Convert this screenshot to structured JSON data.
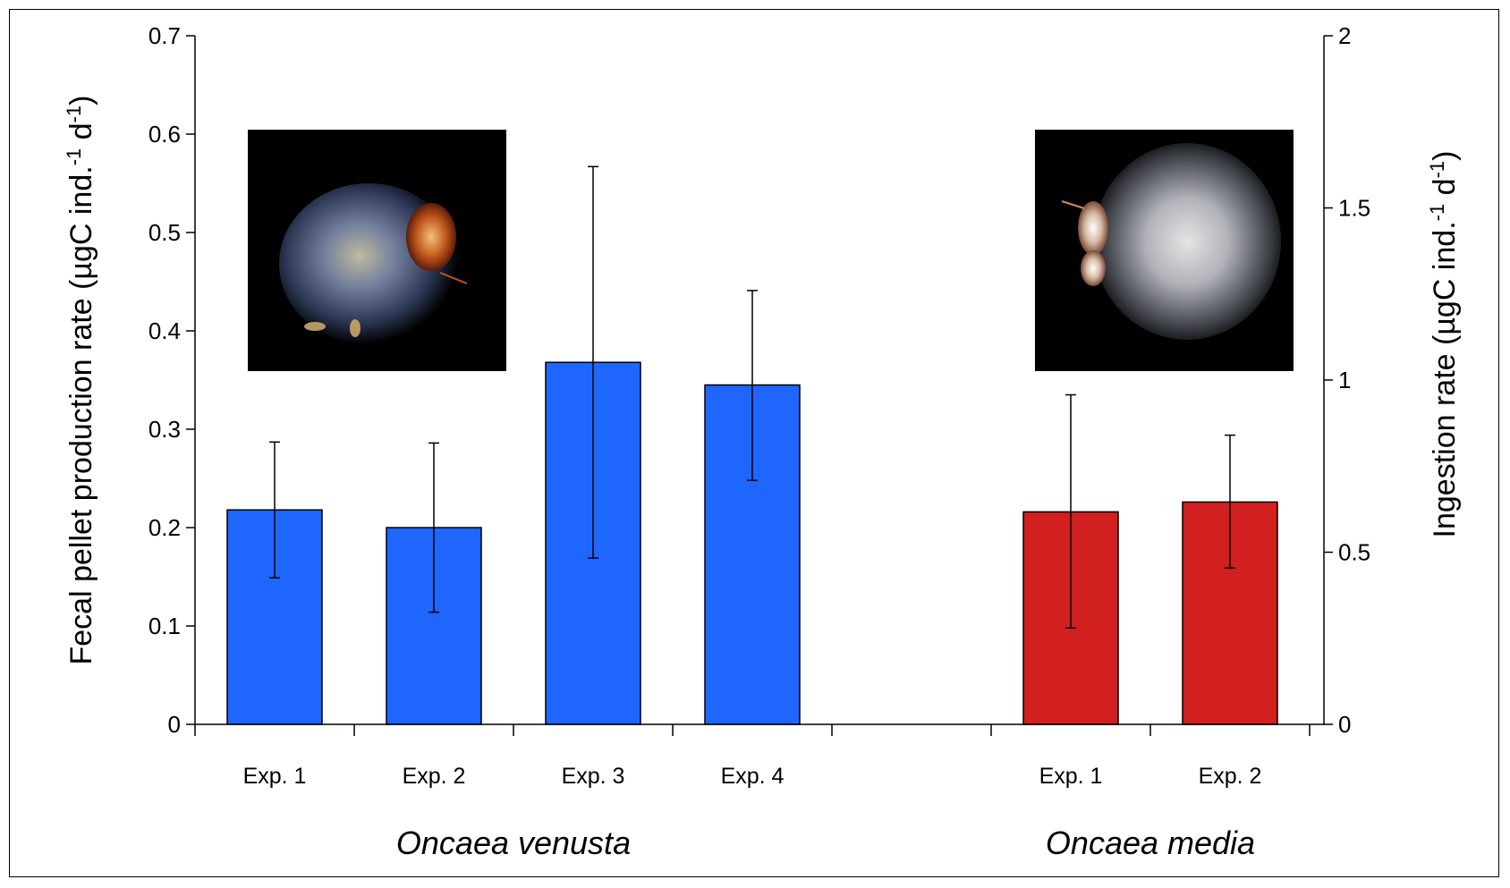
{
  "chart_data": {
    "type": "bar",
    "groups": [
      {
        "name": "Oncaea venusta",
        "color": "#1f66ff",
        "bars": [
          {
            "label": "Exp. 1",
            "value": 0.218,
            "err_low": 0.149,
            "err_high": 0.287
          },
          {
            "label": "Exp. 2",
            "value": 0.2,
            "err_low": 0.114,
            "err_high": 0.286
          },
          {
            "label": "Exp. 3",
            "value": 0.368,
            "err_low": 0.169,
            "err_high": 0.567
          },
          {
            "label": "Exp. 4",
            "value": 0.345,
            "err_low": 0.248,
            "err_high": 0.441
          }
        ]
      },
      {
        "name": "Oncaea media",
        "color": "#d21f1f",
        "bars": [
          {
            "label": "Exp. 1",
            "value": 0.216,
            "err_low": 0.098,
            "err_high": 0.335
          },
          {
            "label": "Exp. 2",
            "value": 0.226,
            "err_low": 0.159,
            "err_high": 0.294
          }
        ]
      }
    ],
    "ylabel_left_parts": [
      "Fecal pellet production rate (µgC ind.",
      "-1",
      " d",
      "-1",
      ")"
    ],
    "ylabel_right_parts": [
      "Ingestion rate (µgC ind.",
      "-1",
      " d",
      "-1",
      ")"
    ],
    "ylim_left": [
      0,
      0.7
    ],
    "yticks_left": [
      "0",
      "0.1",
      "0.2",
      "0.3",
      "0.4",
      "0.5",
      "0.6",
      "0.7"
    ],
    "ylim_right": [
      0,
      2
    ],
    "yticks_right": [
      "0",
      "0.5",
      "1",
      "1.5",
      "2"
    ],
    "grid": false,
    "insets": [
      {
        "name": "photo of Oncaea venusta on a marine snow aggregate",
        "group": "Oncaea venusta"
      },
      {
        "name": "photo of Oncaea media on a gelatinous aggregate",
        "group": "Oncaea media"
      }
    ]
  }
}
